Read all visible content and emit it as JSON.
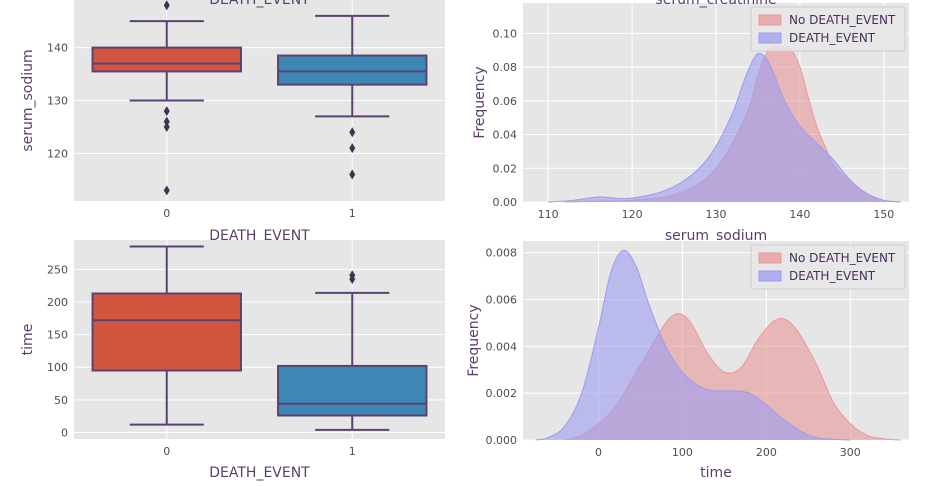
{
  "colors": {
    "panel_bg": "#e6e6e6",
    "grid": "#ffffff",
    "box_no_death": "#d1553f",
    "box_death": "#3d87b5",
    "box_edge": "#5c4270",
    "kde_no_death": "#e8989a",
    "kde_death": "#9c9cf0",
    "text": "#5a3f6b"
  },
  "chart_data": [
    {
      "id": "sodium_box",
      "type": "box",
      "title": "DEATH_EVENT",
      "xlabel": "DEATH_EVENT",
      "ylabel": "serum_sodium",
      "categories": [
        "0",
        "1"
      ],
      "ylim": [
        111,
        149
      ],
      "yticks": [
        120,
        130,
        140
      ],
      "boxes": [
        {
          "category": "0",
          "whisker_low": 130,
          "q1": 135.5,
          "median": 137,
          "q3": 140,
          "whisker_high": 145,
          "outliers": [
            113,
            125,
            126,
            128,
            148
          ],
          "color": "#d1553f"
        },
        {
          "category": "1",
          "whisker_low": 127,
          "q1": 133,
          "median": 135.5,
          "q3": 138.5,
          "whisker_high": 146,
          "outliers": [
            116,
            121,
            124
          ],
          "color": "#3d87b5"
        }
      ]
    },
    {
      "id": "sodium_kde",
      "type": "area",
      "title": "serum_creatinine",
      "xlabel": "serum_sodium",
      "ylabel": "Frequency",
      "xlim": [
        107,
        153
      ],
      "ylim": [
        0,
        0.118
      ],
      "xticks": [
        110,
        120,
        130,
        140,
        150
      ],
      "yticks": [
        0.0,
        0.02,
        0.04,
        0.06,
        0.08,
        0.1
      ],
      "ytick_labels": [
        "0.00",
        "0.02",
        "0.04",
        "0.06",
        "0.08",
        "0.10"
      ],
      "legend_position": "top-right",
      "series": [
        {
          "name": "No DEATH_EVENT",
          "color": "#e8989a",
          "x": [
            112,
            116,
            120,
            124,
            126,
            128,
            130,
            132,
            134,
            135,
            136,
            137,
            138,
            139,
            140,
            141,
            142,
            143,
            144,
            146,
            148,
            150,
            152
          ],
          "y": [
            0,
            0.0005,
            0.001,
            0.003,
            0.006,
            0.011,
            0.02,
            0.035,
            0.057,
            0.075,
            0.088,
            0.092,
            0.092,
            0.09,
            0.08,
            0.062,
            0.045,
            0.033,
            0.022,
            0.012,
            0.005,
            0.001,
            0
          ]
        },
        {
          "name": "DEATH_EVENT",
          "color": "#9c9cf0",
          "x": [
            110,
            113,
            116,
            119,
            122,
            124,
            126,
            128,
            130,
            132,
            133,
            134,
            135,
            136,
            137,
            138,
            140,
            142,
            144,
            146,
            148,
            150,
            152
          ],
          "y": [
            0,
            0.001,
            0.003,
            0.002,
            0.004,
            0.007,
            0.012,
            0.02,
            0.033,
            0.053,
            0.067,
            0.08,
            0.088,
            0.085,
            0.075,
            0.062,
            0.045,
            0.035,
            0.025,
            0.013,
            0.005,
            0.001,
            0
          ]
        }
      ]
    },
    {
      "id": "time_box",
      "type": "box",
      "xlabel": "DEATH_EVENT",
      "ylabel": "time",
      "categories": [
        "0",
        "1"
      ],
      "ylim": [
        -10,
        295
      ],
      "yticks": [
        0,
        50,
        100,
        150,
        200,
        250
      ],
      "boxes": [
        {
          "category": "0",
          "whisker_low": 12,
          "q1": 95,
          "median": 172,
          "q3": 213,
          "whisker_high": 285,
          "outliers": [],
          "color": "#d1553f"
        },
        {
          "category": "1",
          "whisker_low": 4,
          "q1": 26,
          "median": 44,
          "q3": 102,
          "whisker_high": 214,
          "outliers": [
            235,
            241
          ],
          "color": "#3d87b5"
        }
      ]
    },
    {
      "id": "time_kde",
      "type": "area",
      "xlabel": "time",
      "ylabel": "Frequency",
      "xlim": [
        -90,
        370
      ],
      "ylim": [
        0,
        0.0085
      ],
      "xticks": [
        0,
        100,
        200,
        300
      ],
      "yticks": [
        0.0,
        0.002,
        0.004,
        0.006,
        0.008
      ],
      "ytick_labels": [
        "0.000",
        "0.002",
        "0.004",
        "0.006",
        "0.008"
      ],
      "legend_position": "top-right",
      "series": [
        {
          "name": "No DEATH_EVENT",
          "color": "#e8989a",
          "x": [
            -40,
            -20,
            0,
            20,
            40,
            60,
            80,
            95,
            110,
            130,
            150,
            170,
            190,
            210,
            225,
            240,
            260,
            280,
            300,
            320,
            340,
            360
          ],
          "y": [
            0,
            0.0002,
            0.0007,
            0.0014,
            0.0026,
            0.0038,
            0.005,
            0.0054,
            0.005,
            0.0037,
            0.0029,
            0.0031,
            0.0043,
            0.0051,
            0.0051,
            0.0045,
            0.0032,
            0.0016,
            0.0007,
            0.0002,
            5e-05,
            0
          ]
        },
        {
          "name": "DEATH_EVENT",
          "color": "#9c9cf0",
          "x": [
            -75,
            -60,
            -40,
            -20,
            0,
            15,
            30,
            45,
            60,
            80,
            100,
            120,
            140,
            160,
            180,
            200,
            220,
            240,
            260,
            280,
            300
          ],
          "y": [
            0,
            0.0001,
            0.0006,
            0.002,
            0.0048,
            0.0072,
            0.0081,
            0.0074,
            0.0058,
            0.004,
            0.0029,
            0.0023,
            0.0021,
            0.0021,
            0.002,
            0.0015,
            0.0009,
            0.0004,
            0.0001,
            3e-05,
            0
          ]
        }
      ]
    }
  ]
}
